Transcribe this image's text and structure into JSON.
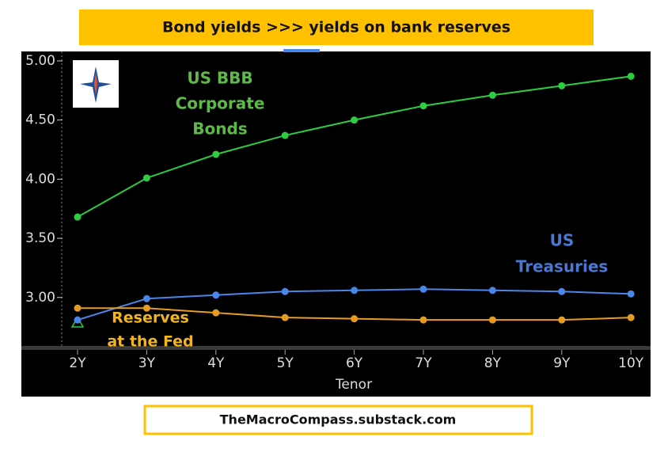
{
  "chart_data": {
    "type": "line",
    "title": "Bond yields >>> yields on bank reserves",
    "footer": "TheMacroCompass.substack.com",
    "x_label": "Tenor",
    "categories": [
      "2Y",
      "3Y",
      "4Y",
      "5Y",
      "6Y",
      "7Y",
      "8Y",
      "9Y",
      "10Y"
    ],
    "series": [
      {
        "name": "US BBB Corporate Bonds",
        "color": "#2ecc40",
        "values": [
          3.68,
          4.01,
          4.21,
          4.37,
          4.5,
          4.62,
          4.71,
          4.79,
          4.87
        ]
      },
      {
        "name": "US Treasuries",
        "color": "#4a86e8",
        "values": [
          2.81,
          2.99,
          3.02,
          3.05,
          3.06,
          3.07,
          3.06,
          3.05,
          3.03
        ]
      },
      {
        "name": "Reserves at the Fed",
        "color": "#e69b22",
        "values": [
          2.91,
          2.91,
          2.87,
          2.83,
          2.82,
          2.81,
          2.81,
          2.81,
          2.83
        ]
      }
    ],
    "ylim": [
      2.57,
      5.08
    ],
    "yticks": [
      {
        "value": 3,
        "label": "3.00"
      },
      {
        "value": 3.5,
        "label": "3.50"
      },
      {
        "value": 4,
        "label": "4.00"
      },
      {
        "value": 4.5,
        "label": "4.50"
      },
      {
        "value": 5,
        "label": "5.00"
      }
    ]
  }
}
